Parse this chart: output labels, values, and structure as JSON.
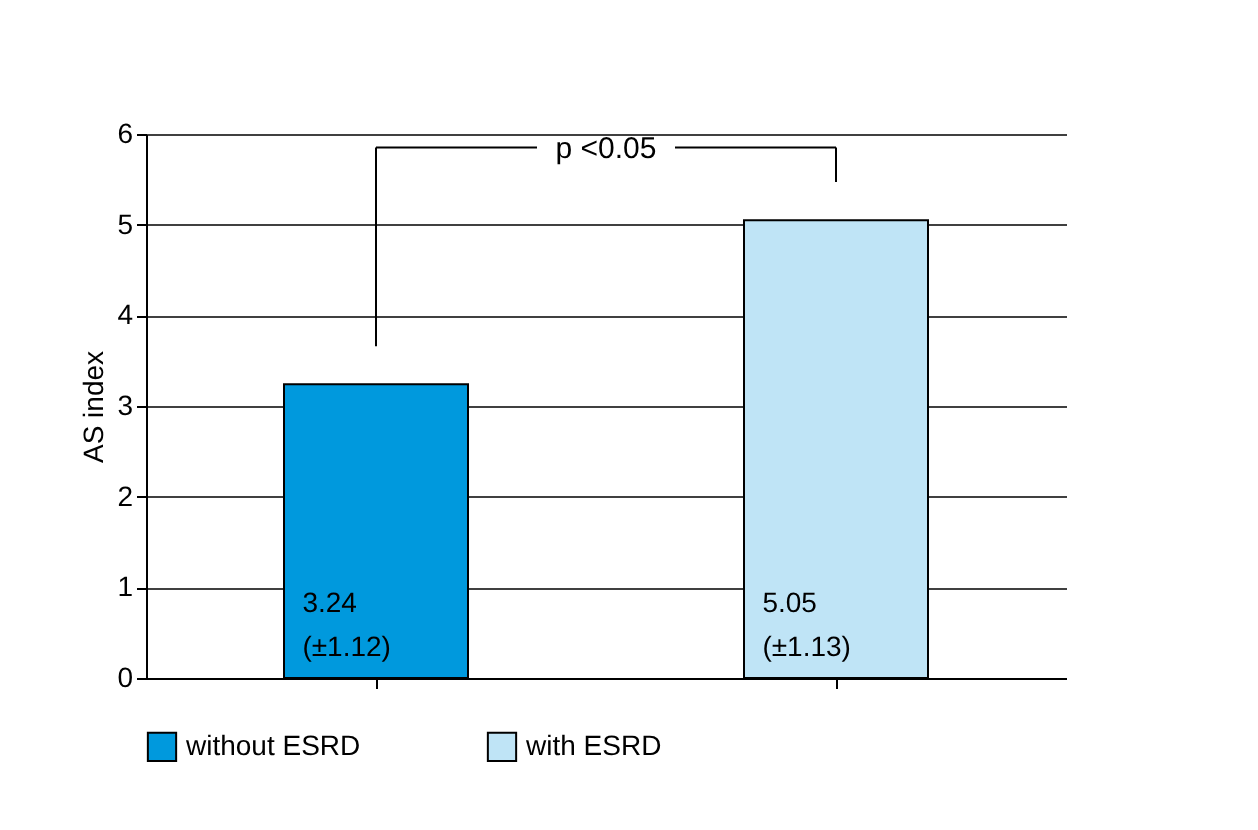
{
  "chart_data": {
    "type": "bar",
    "ylabel": "AS index",
    "categories": [
      null,
      null
    ],
    "series": [
      {
        "name": "without ESRD",
        "color": "#0099dd",
        "values": [
          3.24,
          null
        ],
        "value_labels": [
          "3.24 (±1.12)",
          null
        ]
      },
      {
        "name": "with ESRD",
        "color": "#bfe4f6",
        "values": [
          null,
          5.05
        ],
        "value_labels": [
          null,
          "5.05 (±1.13)"
        ]
      }
    ],
    "ylim": [
      0,
      6
    ],
    "yticks": [
      0,
      1,
      2,
      3,
      4,
      5,
      6
    ],
    "grid": "y",
    "legend": "bottom",
    "annotations": [
      "p <0.05"
    ]
  }
}
